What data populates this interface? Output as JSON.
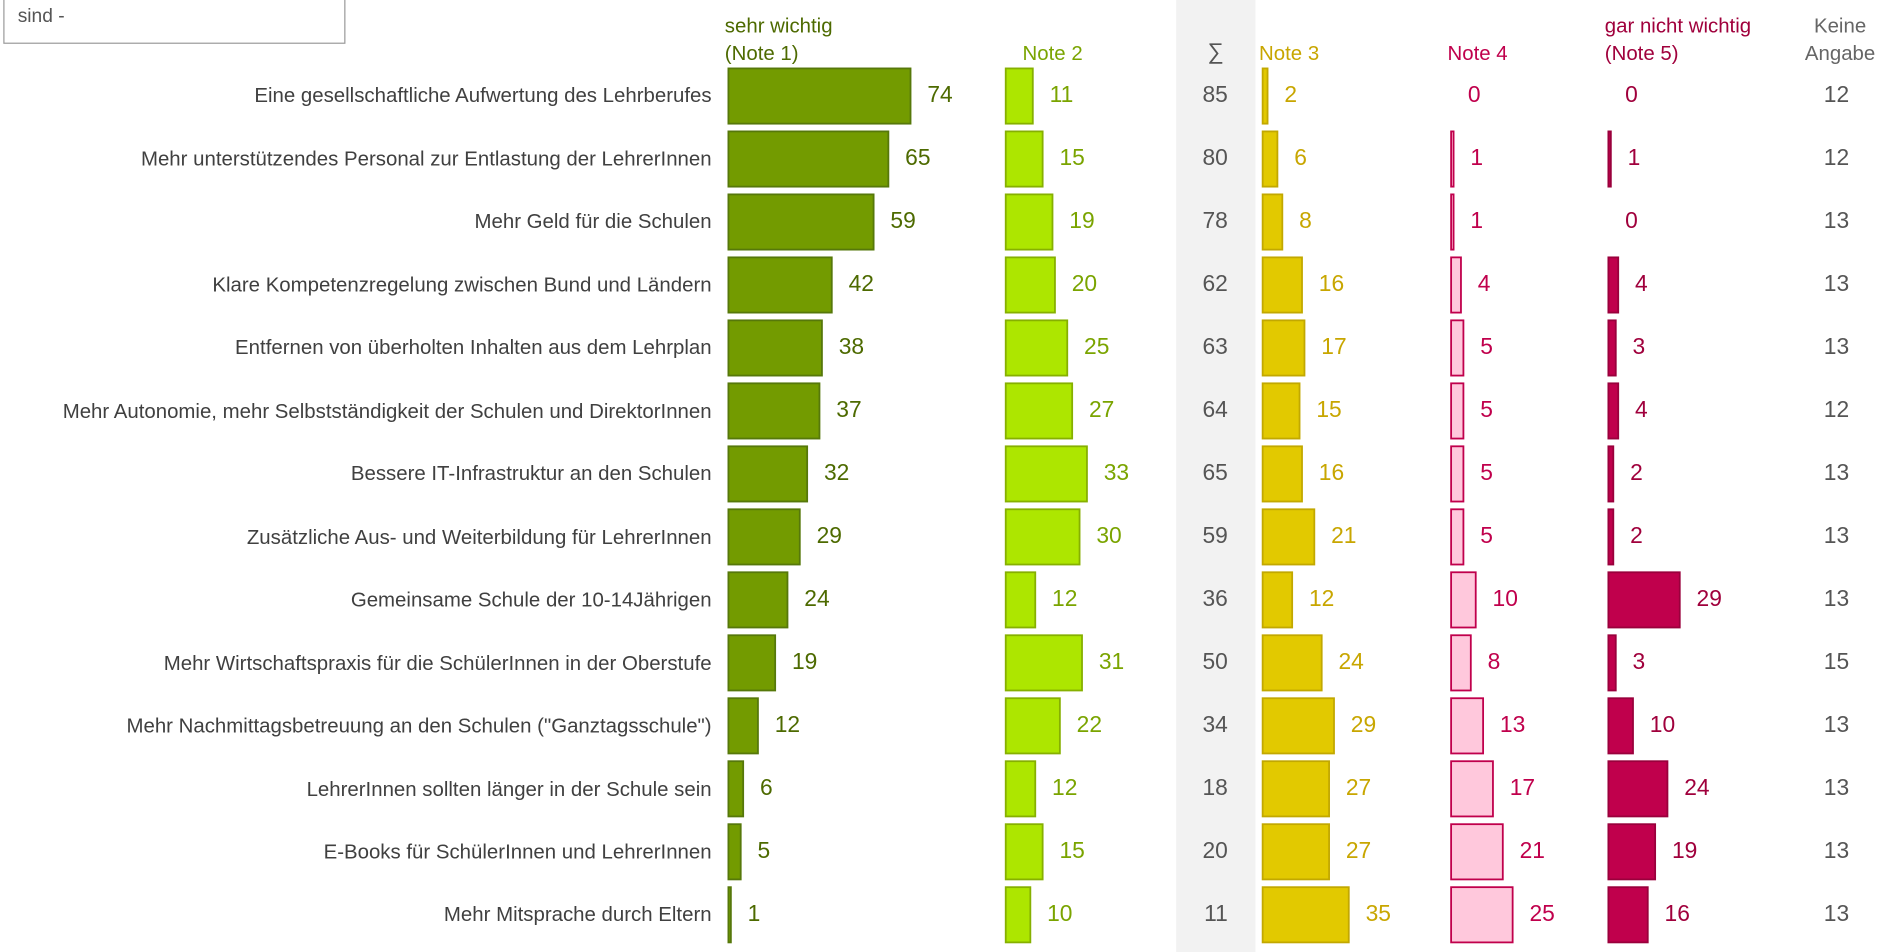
{
  "chart_data": {
    "type": "bar",
    "note": "sind -",
    "categories": [
      "Eine gesellschaftliche Aufwertung des Lehrberufes",
      "Mehr unterstützendes Personal zur Entlastung der LehrerInnen",
      "Mehr Geld für die Schulen",
      "Klare Kompetenzregelung zwischen Bund und Ländern",
      "Entfernen von überholten Inhalten aus dem Lehrplan",
      "Mehr Autonomie, mehr Selbstständigkeit der Schulen und DirektorInnen",
      "Bessere IT-Infrastruktur an den Schulen",
      "Zusätzliche Aus- und Weiterbildung für LehrerInnen",
      "Gemeinsame Schule der 10-14Jährigen",
      "Mehr Wirtschaftspraxis für die SchülerInnen in der Oberstufe",
      "Mehr Nachmittagsbetreuung an den Schulen (\"Ganztagsschule\")",
      "LehrerInnen sollten länger in der Schule sein",
      "E-Books für SchülerInnen und LehrerInnen",
      "Mehr Mitsprache durch Eltern"
    ],
    "xlim": [
      0,
      100
    ],
    "series": [
      {
        "name": "sehr wichtig (Note 1)",
        "color": "#739b00",
        "stroke": "#56780a",
        "label_color": "#4d6a00",
        "values": [
          74,
          65,
          59,
          42,
          38,
          37,
          32,
          29,
          24,
          19,
          12,
          6,
          5,
          1
        ]
      },
      {
        "name": "Note 2",
        "color": "#ade600",
        "stroke": "#86b000",
        "label_color": "#7aa400",
        "values": [
          11,
          15,
          19,
          20,
          25,
          27,
          33,
          30,
          12,
          31,
          22,
          12,
          15,
          10
        ]
      },
      {
        "name": "Note 3",
        "color": "#e2c900",
        "stroke": "#c2a800",
        "label_color": "#c8a600",
        "values": [
          2,
          6,
          8,
          16,
          17,
          15,
          16,
          21,
          12,
          24,
          29,
          27,
          27,
          35
        ]
      },
      {
        "name": "Note 4",
        "color": "#ffc8dc",
        "stroke": "#c0004c",
        "label_color": "#c0004c",
        "values": [
          0,
          1,
          1,
          4,
          5,
          5,
          5,
          5,
          10,
          8,
          13,
          17,
          21,
          25
        ]
      },
      {
        "name": "gar nicht wichtig (Note 5)",
        "color": "#c0004c",
        "stroke": "#9a003c",
        "label_color": "#a0003c",
        "values": [
          0,
          1,
          0,
          4,
          3,
          4,
          2,
          2,
          29,
          3,
          10,
          24,
          19,
          16
        ]
      }
    ],
    "sum_label": "∑",
    "sums": [
      85,
      80,
      78,
      62,
      63,
      64,
      65,
      59,
      36,
      50,
      34,
      18,
      20,
      11
    ],
    "no_answer_label": "Keine Angabe",
    "no_answer": [
      12,
      12,
      13,
      13,
      13,
      12,
      13,
      13,
      13,
      15,
      13,
      13,
      13,
      13
    ]
  }
}
